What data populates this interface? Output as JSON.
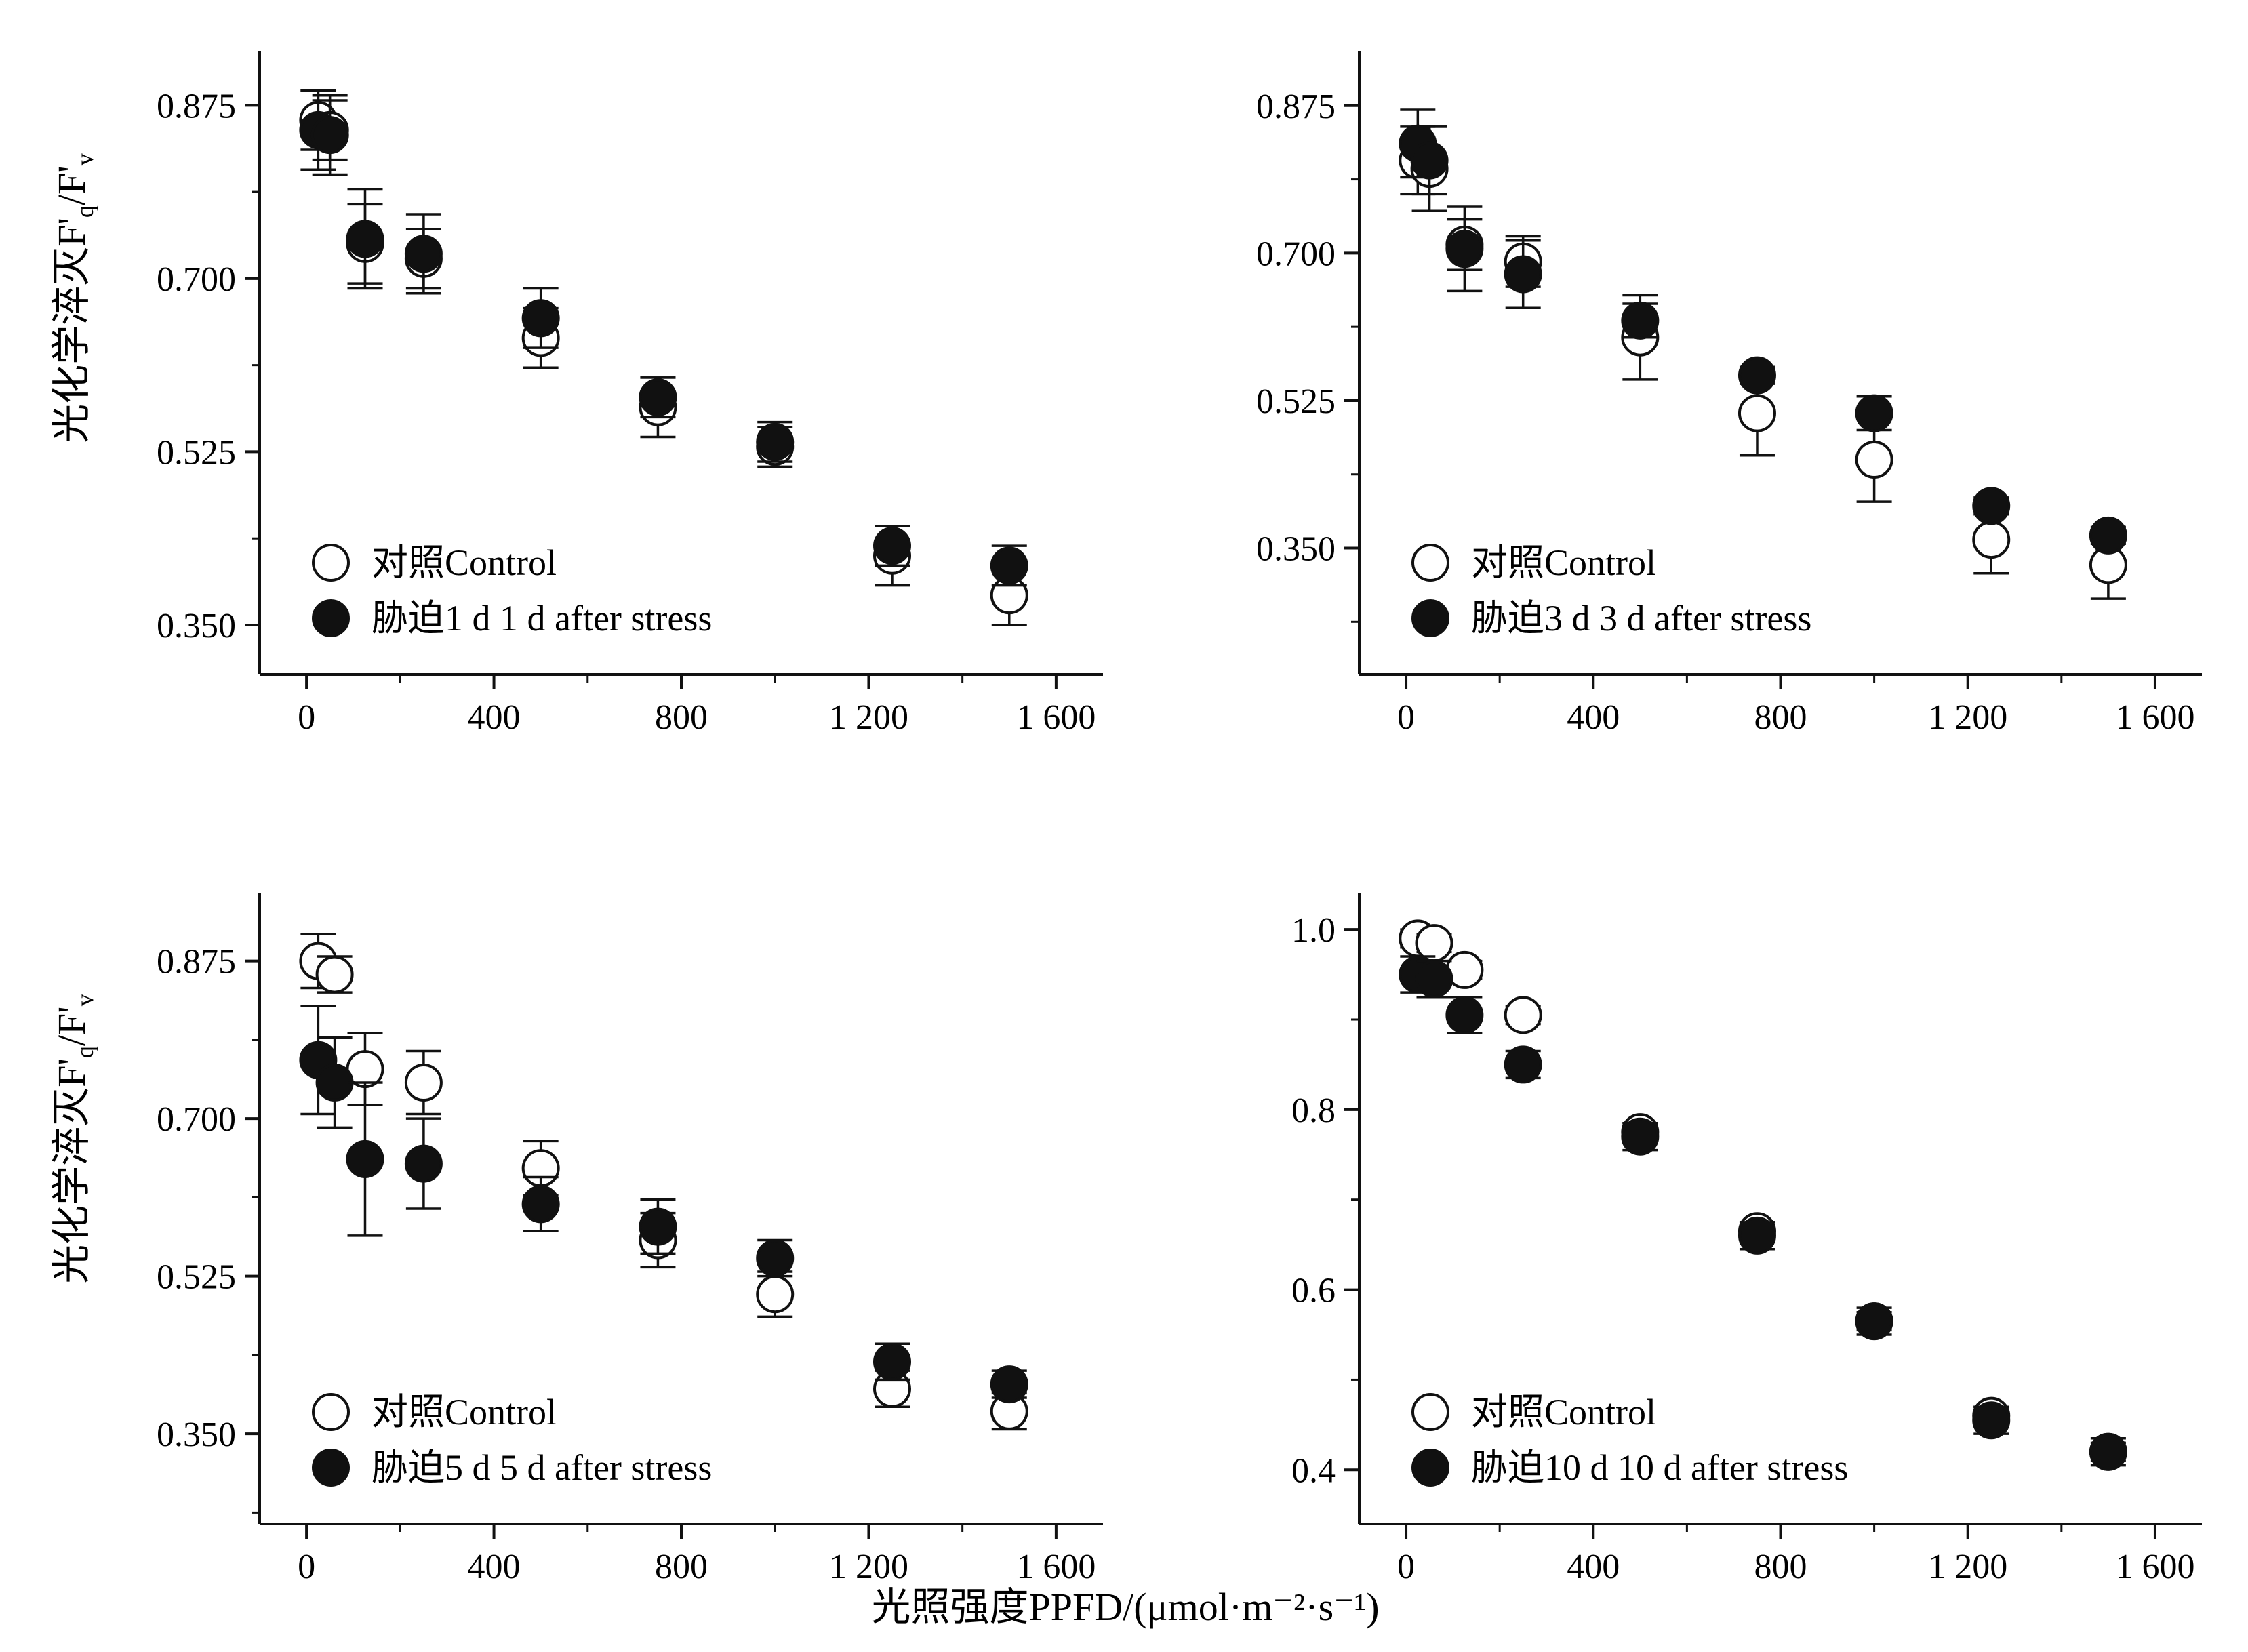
{
  "figure": {
    "x_axis_label": "光照强度PPFD/(μmol·m⁻²·s⁻¹)",
    "y_axis_label_main": "光化学淬灭F'",
    "y_axis_label_q": "q",
    "y_axis_label_sep": "/F'",
    "y_axis_label_v": "v"
  },
  "chart_data": [
    {
      "type": "scatter",
      "xticks": [
        0,
        400,
        800,
        1200,
        1600
      ],
      "xtick_labels": [
        "0",
        "400",
        "800",
        "1 200",
        "1 600"
      ],
      "yticks": [
        0.35,
        0.525,
        0.7,
        0.875
      ],
      "ytick_labels": [
        "0.350",
        "0.525",
        "0.700",
        "0.875"
      ],
      "xlim": [
        -100,
        1700
      ],
      "ylim": [
        0.3,
        0.93
      ],
      "legend_position": "bottom-left",
      "series": [
        {
          "name": "对照Control",
          "marker": "open-circle",
          "points": [
            [
              25,
              0.86,
              0.03
            ],
            [
              50,
              0.85,
              0.03
            ],
            [
              125,
              0.735,
              0.04
            ],
            [
              250,
              0.72,
              0.03
            ],
            [
              500,
              0.64,
              0.03
            ],
            [
              750,
              0.57,
              0.03
            ],
            [
              1000,
              0.53,
              0.02
            ],
            [
              1250,
              0.42,
              0.03
            ],
            [
              1500,
              0.38,
              0.03
            ]
          ]
        },
        {
          "name": "胁迫1 d 1 d after stress",
          "marker": "filled-circle",
          "points": [
            [
              25,
              0.85,
              0.04
            ],
            [
              50,
              0.845,
              0.04
            ],
            [
              125,
              0.74,
              0.05
            ],
            [
              250,
              0.725,
              0.04
            ],
            [
              500,
              0.66,
              0.03
            ],
            [
              750,
              0.58,
              0.02
            ],
            [
              1000,
              0.535,
              0.02
            ],
            [
              1250,
              0.43,
              0.02
            ],
            [
              1500,
              0.41,
              0.02
            ]
          ]
        }
      ]
    },
    {
      "type": "scatter",
      "xticks": [
        0,
        400,
        800,
        1200,
        1600
      ],
      "xtick_labels": [
        "0",
        "400",
        "800",
        "1 200",
        "1 600"
      ],
      "yticks": [
        0.35,
        0.525,
        0.7,
        0.875
      ],
      "ytick_labels": [
        "0.350",
        "0.525",
        "0.700",
        "0.875"
      ],
      "xlim": [
        -100,
        1700
      ],
      "ylim": [
        0.2,
        0.94
      ],
      "legend_position": "bottom-left",
      "series": [
        {
          "name": "对照Control",
          "marker": "open-circle",
          "points": [
            [
              25,
              0.81,
              0.04
            ],
            [
              50,
              0.8,
              0.05
            ],
            [
              125,
              0.71,
              0.03
            ],
            [
              250,
              0.69,
              0.03
            ],
            [
              500,
              0.6,
              0.05
            ],
            [
              750,
              0.51,
              0.05
            ],
            [
              1000,
              0.455,
              0.05
            ],
            [
              1250,
              0.36,
              0.04
            ],
            [
              1500,
              0.33,
              0.04
            ]
          ]
        },
        {
          "name": "胁迫3 d 3 d after stress",
          "marker": "filled-circle",
          "points": [
            [
              25,
              0.83,
              0.04
            ],
            [
              50,
              0.81,
              0.04
            ],
            [
              125,
              0.705,
              0.05
            ],
            [
              250,
              0.675,
              0.04
            ],
            [
              500,
              0.62,
              0.02
            ],
            [
              750,
              0.555,
              0.01
            ],
            [
              1000,
              0.51,
              0.02
            ],
            [
              1250,
              0.4,
              0.01
            ],
            [
              1500,
              0.365,
              0.01
            ]
          ]
        }
      ]
    },
    {
      "type": "scatter",
      "xticks": [
        0,
        400,
        800,
        1200,
        1600
      ],
      "xtick_labels": [
        "0",
        "400",
        "800",
        "1 200",
        "1 600"
      ],
      "yticks": [
        0.35,
        0.525,
        0.7,
        0.875
      ],
      "ytick_labels": [
        "0.350",
        "0.525",
        "0.700",
        "0.875"
      ],
      "xlim": [
        -100,
        1700
      ],
      "ylim": [
        0.25,
        0.95
      ],
      "legend_position": "bottom-left",
      "series": [
        {
          "name": "对照Control",
          "marker": "open-circle",
          "points": [
            [
              25,
              0.875,
              0.03
            ],
            [
              60,
              0.86,
              0.02
            ],
            [
              125,
              0.755,
              0.04
            ],
            [
              250,
              0.74,
              0.035
            ],
            [
              500,
              0.645,
              0.03
            ],
            [
              750,
              0.565,
              0.03
            ],
            [
              1000,
              0.505,
              0.025
            ],
            [
              1250,
              0.4,
              0.02
            ],
            [
              1500,
              0.375,
              0.02
            ]
          ]
        },
        {
          "name": "胁迫5 d 5 d after stress",
          "marker": "filled-circle",
          "points": [
            [
              25,
              0.765,
              0.06
            ],
            [
              60,
              0.74,
              0.05
            ],
            [
              125,
              0.655,
              0.085
            ],
            [
              250,
              0.65,
              0.05
            ],
            [
              500,
              0.605,
              0.03
            ],
            [
              750,
              0.58,
              0.03
            ],
            [
              1000,
              0.545,
              0.02
            ],
            [
              1250,
              0.43,
              0.02
            ],
            [
              1500,
              0.405,
              0.015
            ]
          ]
        }
      ]
    },
    {
      "type": "scatter",
      "xticks": [
        0,
        400,
        800,
        1200,
        1600
      ],
      "xtick_labels": [
        "0",
        "400",
        "800",
        "1 200",
        "1 600"
      ],
      "yticks": [
        0.4,
        0.6,
        0.8,
        1.0
      ],
      "ytick_labels": [
        "0.4",
        "0.6",
        "0.8",
        "1.0"
      ],
      "xlim": [
        -100,
        1700
      ],
      "ylim": [
        0.34,
        1.04
      ],
      "legend_position": "bottom-left",
      "series": [
        {
          "name": "对照Control",
          "marker": "open-circle",
          "points": [
            [
              25,
              0.99,
              0.01
            ],
            [
              60,
              0.985,
              0.01
            ],
            [
              125,
              0.955,
              0.01
            ],
            [
              250,
              0.905,
              0.01
            ],
            [
              500,
              0.775,
              0.01
            ],
            [
              750,
              0.665,
              0.01
            ],
            [
              1000,
              0.565,
              0.01
            ],
            [
              1250,
              0.46,
              0.01
            ],
            [
              1500,
              0.42,
              0.01
            ]
          ]
        },
        {
          "name": "胁迫10 d 10 d after stress",
          "marker": "filled-circle",
          "points": [
            [
              25,
              0.95,
              0.02
            ],
            [
              60,
              0.945,
              0.02
            ],
            [
              125,
              0.905,
              0.02
            ],
            [
              250,
              0.85,
              0.015
            ],
            [
              500,
              0.77,
              0.015
            ],
            [
              750,
              0.66,
              0.015
            ],
            [
              1000,
              0.565,
              0.015
            ],
            [
              1250,
              0.455,
              0.015
            ],
            [
              1500,
              0.42,
              0.015
            ]
          ]
        }
      ]
    }
  ]
}
